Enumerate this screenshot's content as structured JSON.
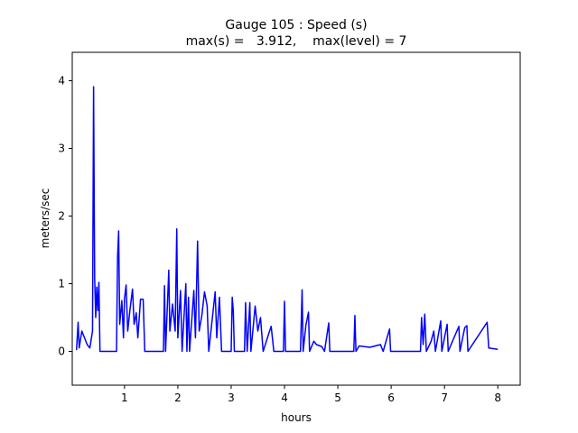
{
  "chart_data": {
    "type": "line",
    "title": "Gauge 105 : Speed (s)",
    "subtitle": "max(s) =   3.912,    max(level) = 7",
    "xlabel": "hours",
    "ylabel": "meters/sec",
    "xlim": [
      0.02,
      8.42
    ],
    "ylim": [
      -0.5,
      4.42
    ],
    "xticks": [
      1,
      2,
      3,
      4,
      5,
      6,
      7,
      8
    ],
    "yticks": [
      0,
      1,
      2,
      3,
      4
    ],
    "series": [
      {
        "color": "#0000ff",
        "x": [
          0.1,
          0.13,
          0.15,
          0.2,
          0.25,
          0.3,
          0.35,
          0.4,
          0.42,
          0.44,
          0.46,
          0.48,
          0.5,
          0.52,
          0.54,
          0.85,
          0.87,
          0.89,
          0.91,
          0.95,
          0.98,
          1.0,
          1.03,
          1.06,
          1.1,
          1.15,
          1.18,
          1.22,
          1.25,
          1.3,
          1.35,
          1.38,
          1.73,
          1.75,
          1.77,
          1.83,
          1.85,
          1.9,
          1.95,
          1.98,
          2.0,
          2.05,
          2.08,
          2.15,
          2.17,
          2.2,
          2.22,
          2.3,
          2.33,
          2.37,
          2.4,
          2.45,
          2.5,
          2.55,
          2.58,
          2.7,
          2.73,
          2.78,
          2.82,
          3.0,
          3.02,
          3.04,
          3.06,
          3.25,
          3.27,
          3.3,
          3.35,
          3.37,
          3.45,
          3.5,
          3.55,
          3.6,
          3.7,
          3.75,
          3.8,
          3.98,
          4.0,
          4.02,
          4.3,
          4.33,
          4.35,
          4.4,
          4.45,
          4.47,
          4.55,
          4.6,
          4.7,
          4.75,
          4.83,
          4.85,
          5.3,
          5.32,
          5.34,
          5.4,
          5.6,
          5.8,
          5.85,
          5.97,
          5.99,
          6.55,
          6.57,
          6.6,
          6.63,
          6.66,
          6.75,
          6.8,
          6.83,
          6.93,
          6.95,
          7.05,
          7.07,
          7.27,
          7.29,
          7.38,
          7.42,
          7.44,
          7.8,
          7.83,
          8.0
        ],
        "values": [
          0.02,
          0.43,
          0.05,
          0.3,
          0.2,
          0.1,
          0.05,
          0.3,
          3.912,
          1.1,
          0.5,
          0.95,
          0.6,
          1.02,
          0.0,
          0.0,
          1.4,
          1.78,
          0.4,
          0.75,
          0.2,
          0.78,
          0.98,
          0.3,
          0.6,
          0.92,
          0.4,
          0.57,
          0.2,
          0.77,
          0.77,
          0.0,
          0.0,
          0.97,
          0.0,
          1.2,
          0.3,
          0.7,
          0.3,
          1.81,
          0.2,
          0.9,
          0.0,
          1.0,
          0.0,
          0.8,
          0.0,
          0.9,
          0.2,
          1.63,
          0.3,
          0.53,
          0.88,
          0.67,
          0.0,
          0.88,
          0.2,
          0.8,
          0.0,
          0.0,
          0.8,
          0.6,
          0.0,
          0.0,
          0.72,
          0.0,
          0.72,
          0.0,
          0.67,
          0.3,
          0.5,
          0.0,
          0.25,
          0.37,
          0.0,
          0.0,
          0.74,
          0.0,
          0.0,
          0.91,
          0.0,
          0.38,
          0.58,
          0.0,
          0.15,
          0.1,
          0.07,
          0.0,
          0.42,
          0.0,
          0.0,
          0.53,
          0.0,
          0.08,
          0.06,
          0.1,
          0.0,
          0.33,
          0.0,
          0.0,
          0.5,
          0.1,
          0.55,
          0.0,
          0.15,
          0.3,
          0.0,
          0.45,
          0.0,
          0.4,
          0.0,
          0.37,
          0.0,
          0.35,
          0.38,
          0.0,
          0.43,
          0.05,
          0.03
        ]
      }
    ]
  }
}
